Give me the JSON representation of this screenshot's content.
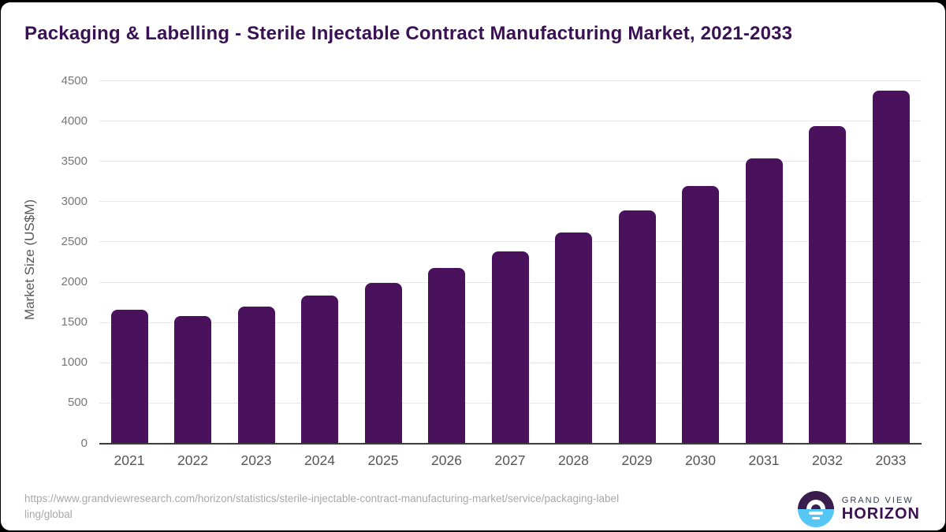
{
  "title": "Packaging & Labelling - Sterile Injectable Contract Manufacturing Market, 2021-2033",
  "chart_data": {
    "type": "bar",
    "categories": [
      "2021",
      "2022",
      "2023",
      "2024",
      "2025",
      "2026",
      "2027",
      "2028",
      "2029",
      "2030",
      "2031",
      "2032",
      "2033"
    ],
    "values": [
      1650,
      1575,
      1690,
      1830,
      1990,
      2175,
      2380,
      2610,
      2885,
      3190,
      3535,
      3930,
      4375
    ],
    "title": "Packaging & Labelling - Sterile Injectable Contract Manufacturing Market, 2021-2033",
    "xlabel": "",
    "ylabel": "Market Size (US$M)",
    "ylim": [
      0,
      4500
    ],
    "ytick_step": 500,
    "grid": true,
    "legend": "none",
    "bar_color": "#4a115c"
  },
  "footer": {
    "source_lines": [
      "https://www.grandviewresearch.com/horizon/statistics/sterile-injectable-contract-manufacturing-market/service/packaging-label",
      "ling/global"
    ],
    "logo": {
      "top_text": "GRAND VIEW",
      "bottom_text": "HORIZON"
    }
  },
  "colors": {
    "bar": "#4a115c",
    "title": "#3a1153",
    "gridline": "#e7e7ea",
    "axis_line": "#3c3c3c",
    "y_tick": "#77777b",
    "x_tick": "#55555a",
    "source_text": "#a8a8a8",
    "logo_blue": "#56c6f4",
    "logo_purple": "#3a1c4d",
    "card_bg": "#ffffff",
    "frame_bg": "#000000"
  }
}
